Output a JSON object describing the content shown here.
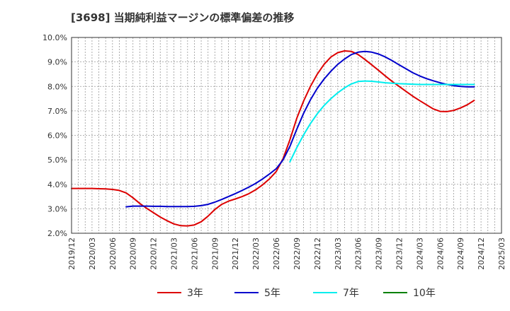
{
  "chart_data": {
    "type": "line",
    "title": "[3698]  当期純利益マージンの標準偏差の推移",
    "xlabel": "",
    "ylabel": "",
    "ylim": [
      2.0,
      10.0
    ],
    "yticks": [
      "2.0%",
      "3.0%",
      "4.0%",
      "5.0%",
      "6.0%",
      "7.0%",
      "8.0%",
      "9.0%",
      "10.0%"
    ],
    "x_tick_labels": [
      "2019/12",
      "2020/03",
      "2020/06",
      "2020/09",
      "2020/12",
      "2021/03",
      "2021/06",
      "2021/09",
      "2021/12",
      "2022/03",
      "2022/06",
      "2022/09",
      "2022/12",
      "2023/03",
      "2023/06",
      "2023/09",
      "2023/12",
      "2024/03",
      "2024/06",
      "2024/09",
      "2024/12",
      "2025/03"
    ],
    "grid": true,
    "legend_position": "bottom",
    "series": [
      {
        "name": "3年",
        "color": "#dd0000",
        "points": [
          [
            "2019/12",
            3.83
          ],
          [
            "2020/01",
            3.83
          ],
          [
            "2020/02",
            3.83
          ],
          [
            "2020/03",
            3.83
          ],
          [
            "2020/04",
            3.82
          ],
          [
            "2020/05",
            3.81
          ],
          [
            "2020/06",
            3.79
          ],
          [
            "2020/07",
            3.75
          ],
          [
            "2020/08",
            3.65
          ],
          [
            "2020/09",
            3.45
          ],
          [
            "2020/10",
            3.22
          ],
          [
            "2020/11",
            3.02
          ],
          [
            "2020/12",
            2.84
          ],
          [
            "2021/01",
            2.66
          ],
          [
            "2021/02",
            2.51
          ],
          [
            "2021/03",
            2.38
          ],
          [
            "2021/04",
            2.31
          ],
          [
            "2021/05",
            2.3
          ],
          [
            "2021/06",
            2.34
          ],
          [
            "2021/07",
            2.47
          ],
          [
            "2021/08",
            2.7
          ],
          [
            "2021/09",
            2.97
          ],
          [
            "2021/10",
            3.18
          ],
          [
            "2021/11",
            3.31
          ],
          [
            "2021/12",
            3.4
          ],
          [
            "2022/01",
            3.5
          ],
          [
            "2022/02",
            3.62
          ],
          [
            "2022/03",
            3.78
          ],
          [
            "2022/04",
            3.98
          ],
          [
            "2022/05",
            4.22
          ],
          [
            "2022/06",
            4.52
          ],
          [
            "2022/07",
            5.05
          ],
          [
            "2022/08",
            5.82
          ],
          [
            "2022/09",
            6.7
          ],
          [
            "2022/10",
            7.4
          ],
          [
            "2022/11",
            8.0
          ],
          [
            "2022/12",
            8.5
          ],
          [
            "2023/01",
            8.9
          ],
          [
            "2023/02",
            9.2
          ],
          [
            "2023/03",
            9.38
          ],
          [
            "2023/04",
            9.45
          ],
          [
            "2023/05",
            9.43
          ],
          [
            "2023/06",
            9.3
          ],
          [
            "2023/07",
            9.1
          ],
          [
            "2023/08",
            8.88
          ],
          [
            "2023/09",
            8.65
          ],
          [
            "2023/10",
            8.42
          ],
          [
            "2023/11",
            8.2
          ],
          [
            "2023/12",
            8.0
          ],
          [
            "2024/01",
            7.8
          ],
          [
            "2024/02",
            7.6
          ],
          [
            "2024/03",
            7.42
          ],
          [
            "2024/04",
            7.25
          ],
          [
            "2024/05",
            7.08
          ],
          [
            "2024/06",
            6.98
          ],
          [
            "2024/07",
            6.97
          ],
          [
            "2024/08",
            7.02
          ],
          [
            "2024/09",
            7.12
          ],
          [
            "2024/10",
            7.25
          ],
          [
            "2024/11",
            7.43
          ]
        ]
      },
      {
        "name": "5年",
        "color": "#0000cc",
        "points": [
          [
            "2020/08",
            3.08
          ],
          [
            "2020/09",
            3.11
          ],
          [
            "2020/10",
            3.11
          ],
          [
            "2020/11",
            3.11
          ],
          [
            "2020/12",
            3.1
          ],
          [
            "2021/01",
            3.1
          ],
          [
            "2021/02",
            3.09
          ],
          [
            "2021/03",
            3.09
          ],
          [
            "2021/04",
            3.09
          ],
          [
            "2021/05",
            3.09
          ],
          [
            "2021/06",
            3.1
          ],
          [
            "2021/07",
            3.13
          ],
          [
            "2021/08",
            3.18
          ],
          [
            "2021/09",
            3.27
          ],
          [
            "2021/10",
            3.38
          ],
          [
            "2021/11",
            3.5
          ],
          [
            "2021/12",
            3.62
          ],
          [
            "2022/01",
            3.75
          ],
          [
            "2022/02",
            3.89
          ],
          [
            "2022/03",
            4.04
          ],
          [
            "2022/04",
            4.22
          ],
          [
            "2022/05",
            4.42
          ],
          [
            "2022/06",
            4.64
          ],
          [
            "2022/07",
            5.0
          ],
          [
            "2022/08",
            5.55
          ],
          [
            "2022/09",
            6.25
          ],
          [
            "2022/10",
            6.9
          ],
          [
            "2022/11",
            7.45
          ],
          [
            "2022/12",
            7.92
          ],
          [
            "2023/01",
            8.3
          ],
          [
            "2023/02",
            8.62
          ],
          [
            "2023/03",
            8.9
          ],
          [
            "2023/04",
            9.12
          ],
          [
            "2023/05",
            9.3
          ],
          [
            "2023/06",
            9.4
          ],
          [
            "2023/07",
            9.43
          ],
          [
            "2023/08",
            9.4
          ],
          [
            "2023/09",
            9.32
          ],
          [
            "2023/10",
            9.2
          ],
          [
            "2023/11",
            9.05
          ],
          [
            "2023/12",
            8.88
          ],
          [
            "2024/01",
            8.72
          ],
          [
            "2024/02",
            8.56
          ],
          [
            "2024/03",
            8.43
          ],
          [
            "2024/04",
            8.32
          ],
          [
            "2024/05",
            8.23
          ],
          [
            "2024/06",
            8.15
          ],
          [
            "2024/07",
            8.08
          ],
          [
            "2024/08",
            8.03
          ],
          [
            "2024/09",
            8.0
          ],
          [
            "2024/10",
            7.98
          ],
          [
            "2024/11",
            7.98
          ]
        ]
      },
      {
        "name": "7年",
        "color": "#00eeee",
        "points": [
          [
            "2022/08",
            4.92
          ],
          [
            "2022/09",
            5.5
          ],
          [
            "2022/10",
            6.02
          ],
          [
            "2022/11",
            6.48
          ],
          [
            "2022/12",
            6.88
          ],
          [
            "2023/01",
            7.22
          ],
          [
            "2023/02",
            7.5
          ],
          [
            "2023/03",
            7.74
          ],
          [
            "2023/04",
            7.94
          ],
          [
            "2023/05",
            8.1
          ],
          [
            "2023/06",
            8.2
          ],
          [
            "2023/07",
            8.22
          ],
          [
            "2023/08",
            8.21
          ],
          [
            "2023/09",
            8.18
          ],
          [
            "2023/10",
            8.15
          ],
          [
            "2023/11",
            8.13
          ],
          [
            "2023/12",
            8.11
          ],
          [
            "2024/01",
            8.1
          ],
          [
            "2024/02",
            8.09
          ],
          [
            "2024/03",
            8.08
          ],
          [
            "2024/04",
            8.08
          ],
          [
            "2024/05",
            8.08
          ],
          [
            "2024/06",
            8.08
          ],
          [
            "2024/07",
            8.08
          ],
          [
            "2024/08",
            8.08
          ],
          [
            "2024/09",
            8.08
          ],
          [
            "2024/10",
            8.08
          ],
          [
            "2024/11",
            8.08
          ]
        ]
      },
      {
        "name": "10年",
        "color": "#008000",
        "points": []
      }
    ]
  }
}
